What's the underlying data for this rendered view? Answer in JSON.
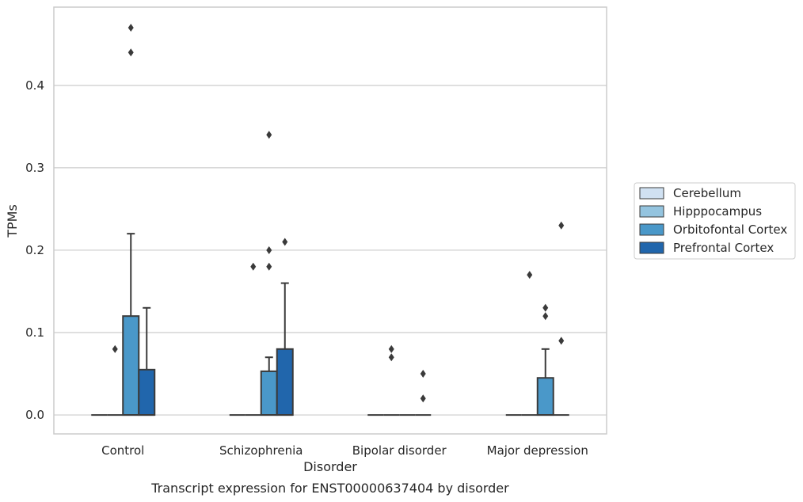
{
  "chart_data": {
    "type": "box",
    "title": "Transcript expression for ENST00000637404 by disorder",
    "xlabel": "Disorder",
    "ylabel": "TPMs",
    "ylim": [
      -0.023,
      0.495
    ],
    "yticks": [
      0.0,
      0.1,
      0.2,
      0.3,
      0.4
    ],
    "ytick_labels": [
      "0.0",
      "0.1",
      "0.2",
      "0.3",
      "0.4"
    ],
    "grid": "horizontal",
    "legend_position": "outside-right",
    "categories": [
      "Control",
      "Schizophrenia",
      "Bipolar disorder",
      "Major depression"
    ],
    "series": [
      {
        "name": "Cerebellum",
        "color": "#d0e1f2",
        "boxes": [
          {
            "q1": 0,
            "median": 0,
            "q3": 0,
            "whisker_low": 0,
            "whisker_high": 0,
            "outliers": []
          },
          {
            "q1": 0,
            "median": 0,
            "q3": 0,
            "whisker_low": 0,
            "whisker_high": 0,
            "outliers": []
          },
          {
            "q1": 0,
            "median": 0,
            "q3": 0,
            "whisker_low": 0,
            "whisker_high": 0,
            "outliers": []
          },
          {
            "q1": 0,
            "median": 0,
            "q3": 0,
            "whisker_low": 0,
            "whisker_high": 0,
            "outliers": []
          }
        ]
      },
      {
        "name": "Hipppocampus",
        "color": "#94c4df",
        "boxes": [
          {
            "q1": 0,
            "median": 0,
            "q3": 0,
            "whisker_low": 0,
            "whisker_high": 0,
            "outliers": [
              0.08
            ]
          },
          {
            "q1": 0,
            "median": 0,
            "q3": 0,
            "whisker_low": 0,
            "whisker_high": 0,
            "outliers": [
              0.18
            ]
          },
          {
            "q1": 0,
            "median": 0,
            "q3": 0,
            "whisker_low": 0,
            "whisker_high": 0,
            "outliers": [
              0.08,
              0.07
            ]
          },
          {
            "q1": 0,
            "median": 0,
            "q3": 0,
            "whisker_low": 0,
            "whisker_high": 0,
            "outliers": [
              0.17
            ]
          }
        ]
      },
      {
        "name": "Orbitofontal Cortex",
        "color": "#4a98c9",
        "boxes": [
          {
            "q1": 0,
            "median": 0,
            "q3": 0.12,
            "whisker_low": 0,
            "whisker_high": 0.22,
            "outliers": [
              0.47,
              0.44
            ]
          },
          {
            "q1": 0,
            "median": 0,
            "q3": 0.053,
            "whisker_low": 0,
            "whisker_high": 0.07,
            "outliers": [
              0.34,
              0.2,
              0.18
            ]
          },
          {
            "q1": 0,
            "median": 0,
            "q3": 0,
            "whisker_low": 0,
            "whisker_high": 0,
            "outliers": []
          },
          {
            "q1": 0,
            "median": 0,
            "q3": 0.045,
            "whisker_low": 0,
            "whisker_high": 0.08,
            "outliers": [
              0.13,
              0.12
            ]
          }
        ]
      },
      {
        "name": "Prefrontal Cortex",
        "color": "#2166ac",
        "boxes": [
          {
            "q1": 0,
            "median": 0,
            "q3": 0.055,
            "whisker_low": 0,
            "whisker_high": 0.13,
            "outliers": []
          },
          {
            "q1": 0,
            "median": 0,
            "q3": 0.08,
            "whisker_low": 0,
            "whisker_high": 0.16,
            "outliers": [
              0.21
            ]
          },
          {
            "q1": 0,
            "median": 0,
            "q3": 0,
            "whisker_low": 0,
            "whisker_high": 0,
            "outliers": [
              0.05,
              0.02
            ]
          },
          {
            "q1": 0,
            "median": 0,
            "q3": 0,
            "whisker_low": 0,
            "whisker_high": 0,
            "outliers": [
              0.23,
              0.09
            ]
          }
        ]
      }
    ],
    "colors": {
      "grid": "#cccccc",
      "frame": "#cccccc",
      "box_edge": "#3a3a3a",
      "outlier": "#3a3a3a"
    }
  }
}
